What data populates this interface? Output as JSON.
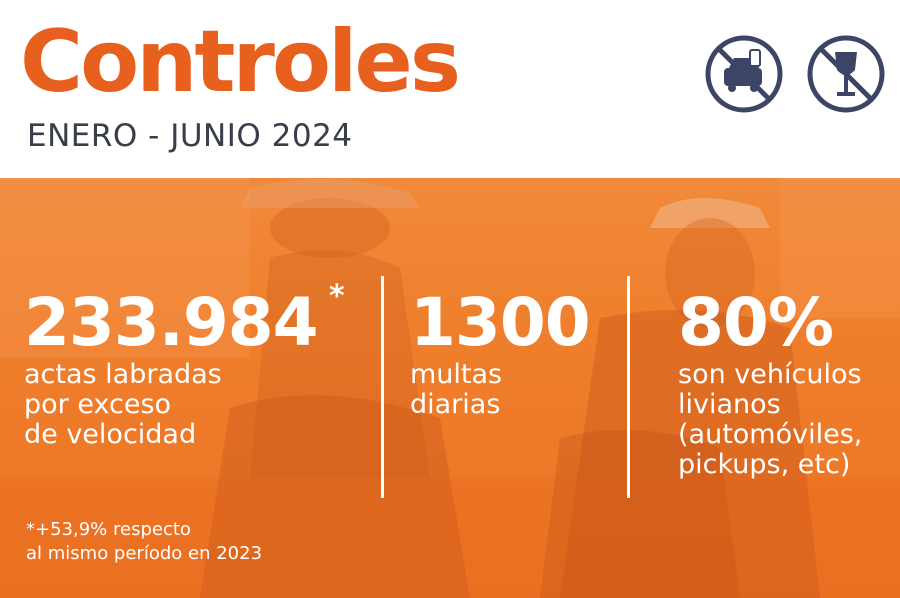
{
  "header": {
    "title": "Controles",
    "subtitle": "ENERO - JUNIO 2024",
    "icons": [
      "no-phone-while-driving-icon",
      "no-alcohol-icon"
    ]
  },
  "colors": {
    "accent": "#e8601e",
    "banner": "#ef7f2c",
    "icon_stroke": "#3d4566",
    "text_dark": "#3a3d4a"
  },
  "stats": [
    {
      "value": "233.984",
      "marker": "*",
      "lines": [
        "actas labradas",
        "por exceso",
        "de velocidad"
      ]
    },
    {
      "value": "1300",
      "lines": [
        "multas",
        "diarias"
      ]
    },
    {
      "value": "80%",
      "lines": [
        "son vehículos",
        "livianos",
        "(automóviles,",
        "pickups, etc)"
      ]
    }
  ],
  "footnote": {
    "line1": "*+53,9% respecto",
    "line2": "al mismo período en 2023"
  }
}
